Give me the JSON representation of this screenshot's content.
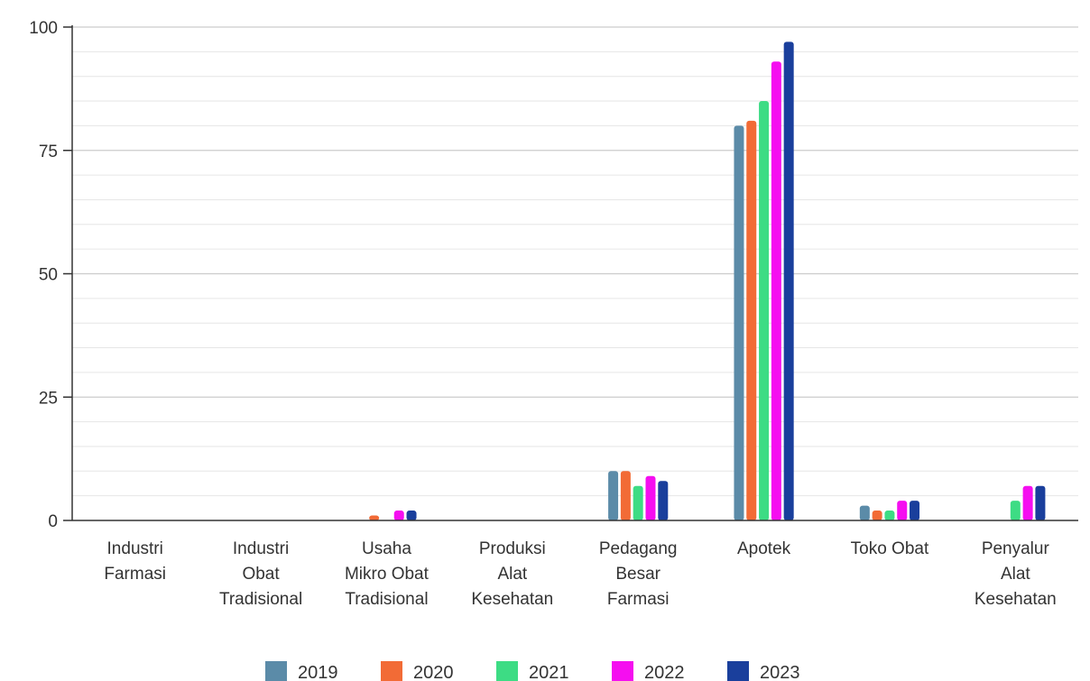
{
  "chart_data": {
    "type": "bar",
    "title": "",
    "xlabel": "",
    "ylabel": "",
    "ylim": [
      0,
      100
    ],
    "yticks": [
      0,
      25,
      50,
      75,
      100
    ],
    "minor_gridlines": true,
    "legend_position": "bottom",
    "categories": [
      [
        "Industri",
        "Farmasi"
      ],
      [
        "Industri",
        "Obat",
        "Tradisional"
      ],
      [
        "Usaha",
        "Mikro Obat",
        "Tradisional"
      ],
      [
        "Produksi",
        "Alat",
        "Kesehatan"
      ],
      [
        "Pedagang",
        "Besar",
        "Farmasi"
      ],
      [
        "Apotek"
      ],
      [
        "Toko Obat"
      ],
      [
        "Penyalur",
        "Alat",
        "Kesehatan"
      ]
    ],
    "series": [
      {
        "name": "2019",
        "color": "#5b8ba8",
        "values": [
          0,
          0,
          0,
          0,
          10,
          80,
          3,
          0
        ]
      },
      {
        "name": "2020",
        "color": "#f26b36",
        "values": [
          0,
          0,
          1,
          0,
          10,
          81,
          2,
          0
        ]
      },
      {
        "name": "2021",
        "color": "#3ddc84",
        "values": [
          0,
          0,
          0,
          0,
          7,
          85,
          2,
          4
        ]
      },
      {
        "name": "2022",
        "color": "#f50ef0",
        "values": [
          0,
          0,
          2,
          0,
          9,
          93,
          4,
          7
        ]
      },
      {
        "name": "2023",
        "color": "#1a3f9c",
        "values": [
          0,
          0,
          2,
          0,
          8,
          97,
          4,
          7
        ]
      }
    ]
  }
}
